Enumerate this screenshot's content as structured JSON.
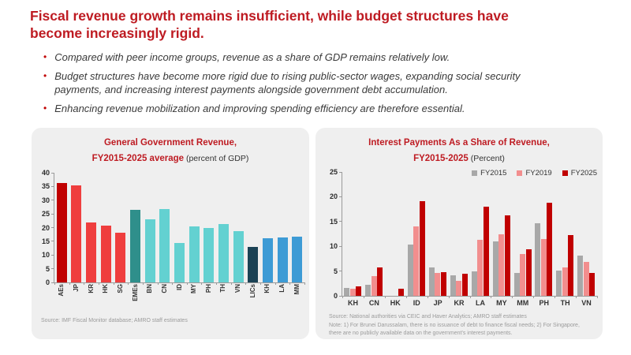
{
  "slide": {
    "title": "Fiscal revenue growth remains insufficient, while budget structures have become increasingly rigid.",
    "bullets": [
      "Compared with peer income groups, revenue as a share of GDP remains relatively low.",
      "Budget structures have become more rigid due to rising public-sector wages, expanding social security payments, and increasing interest payments alongside government debt accumulation.",
      "Enhancing revenue mobilization and improving spending efficiency are therefore essential."
    ],
    "bullet_marker": "•"
  },
  "colors": {
    "title_red": "#BE1B22",
    "panel_background": "#EFEFEF",
    "axis_gray": "#9a9a9a"
  },
  "charts": {
    "left": {
      "title_line1": "General Government Revenue,",
      "title_line2_bold": "FY2015-2025 average",
      "title_line2_normal": " (percent of GDP)",
      "source": "Source: IMF Fiscal Monitor database; AMRO staff estimates"
    },
    "right": {
      "title_line1": "Interest Payments As a Share of Revenue,",
      "title_line2_bold": "FY2015-2025",
      "title_line2_normal": " (Percent)",
      "source": "Source: National authorities via CEIC and Haver Analytics; AMRO staff estimates",
      "note": "Note: 1) For Brunei Darussalam, there is no issuance of debt to finance fiscal needs; 2) For Singapore, there are no publicly available data on the government's interest payments."
    }
  },
  "chart_data": [
    {
      "type": "bar",
      "title": "General Government Revenue, FY2015-2025 average (percent of GDP)",
      "categories": [
        "AEs",
        "JP",
        "KR",
        "HK",
        "SG",
        "EMEs",
        "BN",
        "CN",
        "ID",
        "MY",
        "PH",
        "TH",
        "VN",
        "LICs",
        "KH",
        "LA",
        "MM"
      ],
      "values": [
        36.2,
        35.4,
        22.0,
        20.6,
        18.0,
        26.6,
        22.9,
        26.8,
        14.3,
        20.4,
        19.9,
        21.2,
        18.8,
        13.0,
        16.2,
        16.3,
        16.8
      ],
      "bar_colors": [
        "#C00000",
        "#EF3E3E",
        "#EF3E3E",
        "#EF3E3E",
        "#EF3E3E",
        "#2F8F8B",
        "#63D1D1",
        "#63D1D1",
        "#63D1D1",
        "#63D1D1",
        "#63D1D1",
        "#63D1D1",
        "#63D1D1",
        "#1B4255",
        "#3D9BD5",
        "#3D9BD5",
        "#3D9BD5"
      ],
      "xlabel": "",
      "ylabel": "",
      "ylim": [
        0,
        40
      ],
      "ytick_step": 5,
      "grid": false,
      "legend": "none"
    },
    {
      "type": "grouped-bar",
      "title": "Interest Payments As a Share of Revenue, FY2015-2025 (Percent)",
      "categories": [
        "KH",
        "CN",
        "HK",
        "ID",
        "JP",
        "KR",
        "LA",
        "MY",
        "MM",
        "PH",
        "TH",
        "VN"
      ],
      "series": [
        {
          "name": "FY2015",
          "color": "#A8A8A8",
          "values": [
            1.6,
            2.2,
            0,
            10.3,
            5.7,
            4.1,
            4.9,
            11.0,
            4.6,
            14.6,
            5.1,
            8.2
          ]
        },
        {
          "name": "FY2019",
          "color": "#F28E8E",
          "values": [
            1.5,
            4.0,
            0,
            14.0,
            4.6,
            3.1,
            11.3,
            12.4,
            8.5,
            11.4,
            5.8,
            6.8
          ]
        },
        {
          "name": "FY2025",
          "color": "#C00000",
          "values": [
            1.9,
            5.7,
            1.4,
            19.1,
            4.7,
            4.5,
            18.0,
            16.2,
            9.4,
            18.8,
            12.3,
            4.6
          ]
        }
      ],
      "xlabel": "",
      "ylabel": "",
      "ylim": [
        0,
        25
      ],
      "ytick_step": 5,
      "grid": false,
      "legend_position": "top-right"
    }
  ]
}
